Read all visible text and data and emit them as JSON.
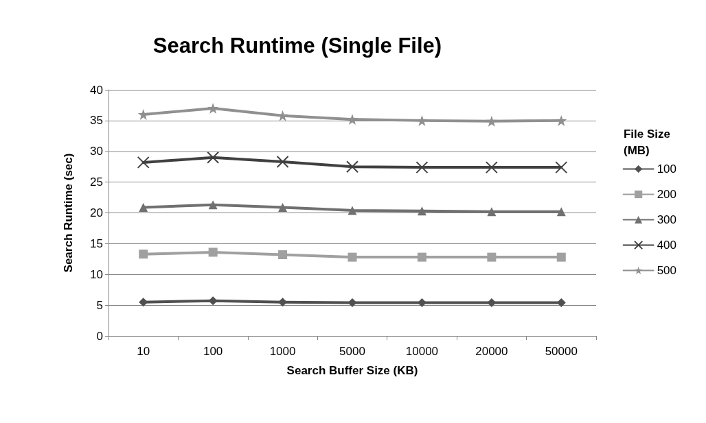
{
  "chart_data": {
    "type": "line",
    "title": "Search Runtime (Single File)",
    "xlabel": "Search Buffer Size (KB)",
    "ylabel": "Search Runtime (sec)",
    "legend_title": "File Size (MB)",
    "categories": [
      "10",
      "100",
      "1000",
      "5000",
      "10000",
      "20000",
      "50000"
    ],
    "series": [
      {
        "name": "100",
        "color": "#505050",
        "marker": "diamond",
        "values": [
          5.5,
          5.7,
          5.5,
          5.4,
          5.4,
          5.4,
          5.4
        ]
      },
      {
        "name": "200",
        "color": "#a0a0a0",
        "marker": "square",
        "values": [
          13.3,
          13.6,
          13.2,
          12.8,
          12.8,
          12.8,
          12.8
        ]
      },
      {
        "name": "300",
        "color": "#707070",
        "marker": "triangle",
        "values": [
          20.9,
          21.3,
          20.9,
          20.4,
          20.3,
          20.2,
          20.2
        ]
      },
      {
        "name": "400",
        "color": "#404040",
        "marker": "cross",
        "values": [
          28.2,
          29,
          28.3,
          27.5,
          27.4,
          27.4,
          27.4
        ]
      },
      {
        "name": "500",
        "color": "#909090",
        "marker": "star",
        "values": [
          36,
          37,
          35.8,
          35.2,
          35,
          34.9,
          35
        ]
      }
    ],
    "ylim": [
      0,
      40
    ],
    "yticks": [
      0,
      5,
      10,
      15,
      20,
      25,
      30,
      35,
      40
    ],
    "grid": "y",
    "legend": "right",
    "line_style": "solid"
  }
}
